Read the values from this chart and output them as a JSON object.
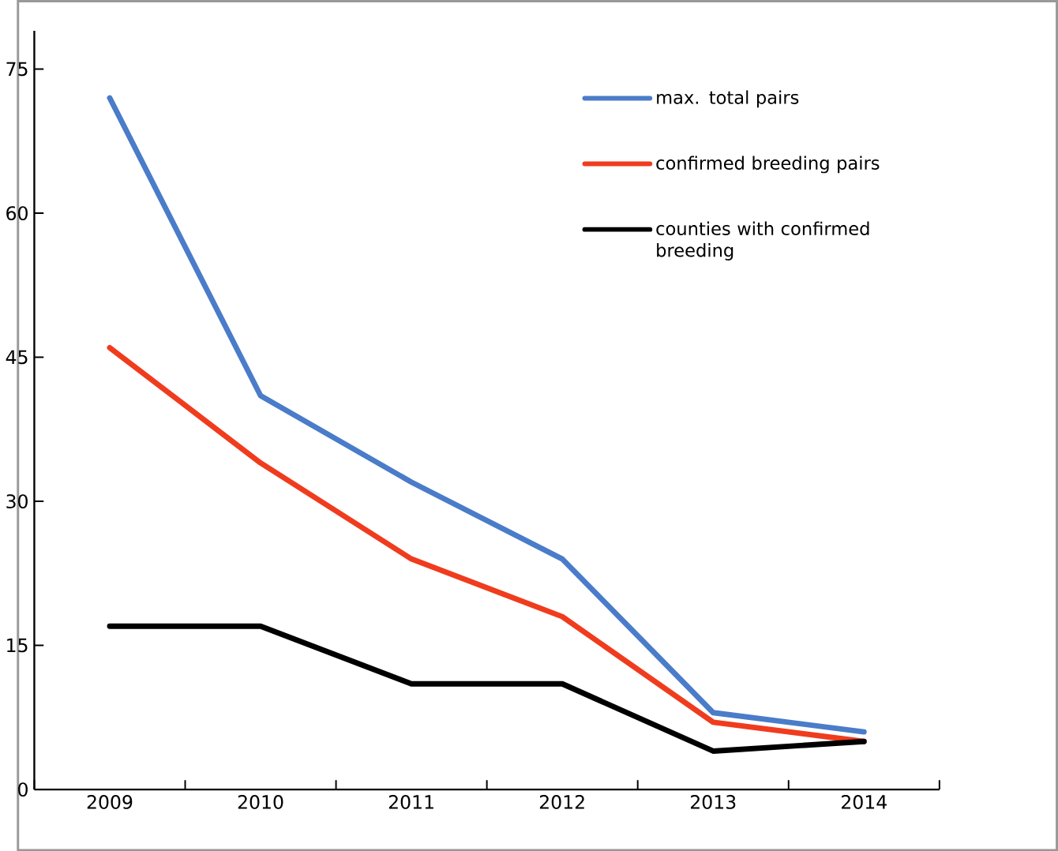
{
  "chart_data": {
    "type": "line",
    "categories": [
      "2009",
      "2010",
      "2011",
      "2012",
      "2013",
      "2014"
    ],
    "series": [
      {
        "name": "max. total pairs",
        "color": "#4a7cc9",
        "values": [
          72,
          41,
          32,
          24,
          8,
          6
        ]
      },
      {
        "name": "confirmed breeding pairs",
        "color": "#f03c1e",
        "values": [
          46,
          34,
          24,
          18,
          7,
          5
        ]
      },
      {
        "name": "counties with confirmed breeding",
        "color": "#000000",
        "values": [
          17,
          17,
          11,
          11,
          4,
          5
        ]
      }
    ],
    "ylim": [
      0,
      79
    ],
    "yticks": [
      0,
      15,
      30,
      45,
      60,
      75
    ],
    "grid": false,
    "legend": "right",
    "marker": "none",
    "line_style": "solid"
  }
}
